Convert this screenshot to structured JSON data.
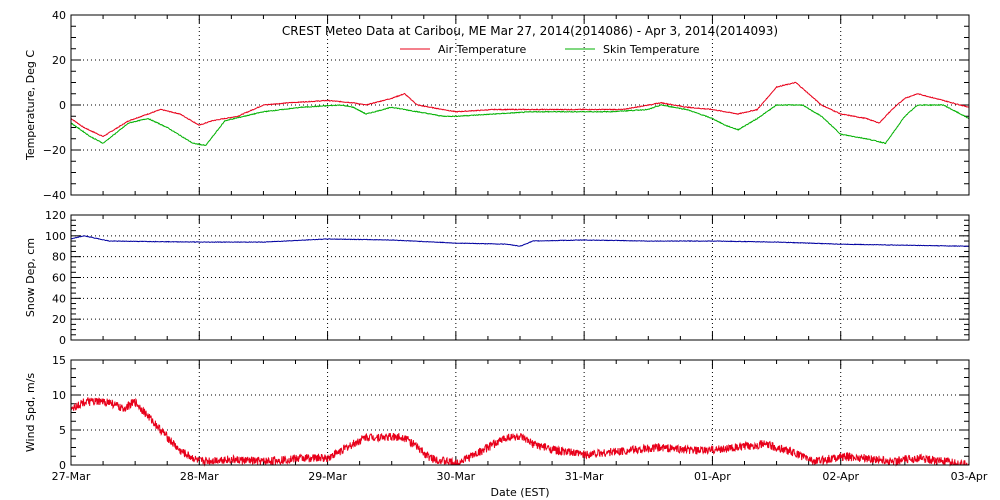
{
  "chart_data": {
    "title": "CREST Meteo Data at Caribou, ME   Mar 27, 2014(2014086) - Apr  3, 2014(2014093)",
    "xlabel": "Date (EST)",
    "x_ticks": [
      "27-Mar",
      "28-Mar",
      "29-Mar",
      "30-Mar",
      "31-Mar",
      "01-Apr",
      "02-Apr",
      "03-Apr"
    ],
    "xlim": [
      0,
      7
    ],
    "grid": "dotted at date ticks",
    "colors": {
      "air": "#e8001a",
      "skin": "#00b000",
      "snow": "#0000a0",
      "wind": "#e8001a"
    },
    "panels": [
      {
        "type": "line",
        "ylabel": "Temperature, Deg C",
        "ylim": [
          -40,
          40
        ],
        "y_ticks": [
          "40",
          "20",
          "0",
          "−20",
          "−40"
        ],
        "legend": "top-center",
        "series": [
          {
            "name": "Air Temperature",
            "color": "air",
            "x": [
              0,
              0.1,
              0.25,
              0.45,
              0.7,
              0.85,
              1.0,
              1.1,
              1.3,
              1.5,
              1.7,
              2.0,
              2.2,
              2.3,
              2.5,
              2.6,
              2.7,
              2.9,
              3.0,
              3.3,
              3.7,
              4.0,
              4.3,
              4.6,
              4.8,
              5.0,
              5.2,
              5.35,
              5.5,
              5.65,
              5.85,
              6.0,
              6.2,
              6.3,
              6.4,
              6.5,
              6.6,
              6.8,
              7.0
            ],
            "y": [
              -6,
              -10,
              -14,
              -7,
              -2,
              -4,
              -9,
              -7,
              -5,
              0,
              1,
              2,
              1,
              0,
              3,
              5,
              0,
              -2,
              -3,
              -2,
              -2,
              -2,
              -2,
              1,
              -1,
              -2,
              -4,
              -2,
              8,
              10,
              0,
              -4,
              -6,
              -8,
              -2,
              3,
              5,
              2,
              -1
            ]
          },
          {
            "name": "Skin Temperature",
            "color": "skin",
            "x": [
              0,
              0.15,
              0.25,
              0.45,
              0.6,
              0.75,
              0.95,
              1.05,
              1.2,
              1.5,
              1.8,
              2.1,
              2.2,
              2.3,
              2.5,
              2.7,
              2.9,
              3.0,
              3.3,
              3.6,
              3.8,
              4.2,
              4.5,
              4.6,
              4.8,
              5.0,
              5.1,
              5.2,
              5.35,
              5.5,
              5.7,
              5.85,
              6.0,
              6.2,
              6.35,
              6.5,
              6.6,
              6.8,
              7.0
            ],
            "y": [
              -8,
              -14,
              -17,
              -8,
              -6,
              -10,
              -17,
              -18,
              -7,
              -3,
              -1,
              0,
              -1,
              -4,
              -1,
              -3,
              -5,
              -5,
              -4,
              -3,
              -3,
              -3,
              -2,
              0,
              -2,
              -6,
              -9,
              -11,
              -6,
              0,
              0,
              -5,
              -13,
              -15,
              -17,
              -5,
              0,
              0,
              -6
            ]
          }
        ]
      },
      {
        "type": "line",
        "ylabel": "Snow Dep, cm",
        "ylim": [
          0,
          120
        ],
        "y_ticks": [
          "120",
          "100",
          "80",
          "60",
          "40",
          "20",
          "0"
        ],
        "series": [
          {
            "color": "snow",
            "x": [
              0,
              0.1,
              0.3,
              1.0,
              1.5,
              2.0,
              2.5,
              3.0,
              3.4,
              3.5,
              3.6,
              4.0,
              4.5,
              5.0,
              5.5,
              6.0,
              6.5,
              7.0
            ],
            "y": [
              97,
              100,
              95,
              94,
              94,
              97,
              96,
              93,
              92,
              90,
              95,
              96,
              95,
              95,
              94,
              92,
              91,
              90
            ]
          }
        ]
      },
      {
        "type": "line",
        "ylabel": "Wind Spd, m/s",
        "ylim": [
          0,
          15
        ],
        "y_ticks": [
          "15",
          "10",
          "5",
          "0"
        ],
        "series": [
          {
            "color": "wind",
            "x": [
              0,
              0.1,
              0.2,
              0.3,
              0.4,
              0.5,
              0.6,
              0.7,
              0.85,
              1.0,
              1.2,
              1.5,
              1.8,
              2.0,
              2.2,
              2.3,
              2.4,
              2.6,
              2.8,
              3.0,
              3.2,
              3.4,
              3.5,
              3.6,
              3.8,
              4.0,
              4.3,
              4.6,
              4.9,
              5.2,
              5.4,
              5.6,
              5.8,
              6.0,
              6.2,
              6.4,
              6.6,
              6.8,
              7.0
            ],
            "y": [
              8,
              9,
              9,
              9,
              8,
              9,
              7,
              5,
              2,
              0.5,
              0.8,
              0.5,
              1,
              1,
              3,
              4,
              4,
              4,
              1,
              0.2,
              2,
              4,
              4,
              3,
              2,
              1.5,
              2,
              2.5,
              2,
              2.5,
              3,
              2,
              0.5,
              1.2,
              1,
              0.5,
              1,
              0.5,
              0
            ]
          }
        ]
      }
    ]
  }
}
